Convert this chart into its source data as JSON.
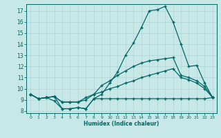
{
  "xlabel": "Humidex (Indice chaleur)",
  "line_color": "#006666",
  "bg_color": "#c8e8e8",
  "grid_color": "#a8d0d0",
  "xlim": [
    -0.5,
    23.5
  ],
  "ylim": [
    7.8,
    17.6
  ],
  "xticks": [
    0,
    1,
    2,
    3,
    4,
    5,
    6,
    7,
    8,
    9,
    10,
    11,
    12,
    13,
    14,
    15,
    16,
    17,
    18,
    19,
    20,
    21,
    22,
    23
  ],
  "yticks": [
    8,
    9,
    10,
    11,
    12,
    13,
    14,
    15,
    16,
    17
  ],
  "curve_a_x": [
    0,
    1,
    2,
    3,
    4,
    5,
    6,
    7,
    8,
    9,
    10,
    11,
    12,
    13,
    14,
    15,
    16,
    17,
    18,
    19,
    20,
    21,
    22,
    23
  ],
  "curve_a_y": [
    9.5,
    9.1,
    9.2,
    8.9,
    8.2,
    8.2,
    8.3,
    8.2,
    9.1,
    9.5,
    10.5,
    11.5,
    13.0,
    14.1,
    15.5,
    17.0,
    17.1,
    17.4,
    16.0,
    14.0,
    12.0,
    12.1,
    10.5,
    9.2
  ],
  "curve_b_x": [
    0,
    1,
    2,
    3,
    4,
    5,
    6,
    7,
    8,
    9,
    10,
    11,
    12,
    13,
    14,
    15,
    16,
    17,
    18,
    19,
    20,
    21,
    22,
    23
  ],
  "curve_b_y": [
    9.5,
    9.1,
    9.2,
    9.3,
    8.8,
    8.8,
    8.8,
    9.0,
    9.5,
    10.3,
    10.7,
    11.2,
    11.6,
    12.0,
    12.3,
    12.5,
    12.6,
    12.7,
    12.8,
    11.2,
    11.0,
    10.7,
    10.2,
    9.2
  ],
  "curve_c_x": [
    0,
    1,
    2,
    3,
    4,
    5,
    6,
    7,
    8,
    9,
    10,
    11,
    12,
    13,
    14,
    15,
    16,
    17,
    18,
    19,
    20,
    21,
    22,
    23
  ],
  "curve_c_y": [
    9.5,
    9.1,
    9.2,
    9.3,
    8.8,
    8.8,
    8.8,
    9.2,
    9.5,
    9.7,
    10.0,
    10.2,
    10.5,
    10.7,
    11.0,
    11.2,
    11.4,
    11.6,
    11.8,
    11.0,
    10.8,
    10.5,
    10.0,
    9.2
  ],
  "curve_d_x": [
    0,
    1,
    2,
    3,
    4,
    5,
    6,
    7,
    8,
    9,
    10,
    11,
    12,
    13,
    14,
    15,
    16,
    17,
    18,
    19,
    20,
    21,
    22,
    23
  ],
  "curve_d_y": [
    9.5,
    9.1,
    9.2,
    9.3,
    8.2,
    8.2,
    8.3,
    8.2,
    9.1,
    9.1,
    9.1,
    9.1,
    9.1,
    9.1,
    9.1,
    9.1,
    9.1,
    9.1,
    9.1,
    9.1,
    9.1,
    9.1,
    9.1,
    9.2
  ]
}
